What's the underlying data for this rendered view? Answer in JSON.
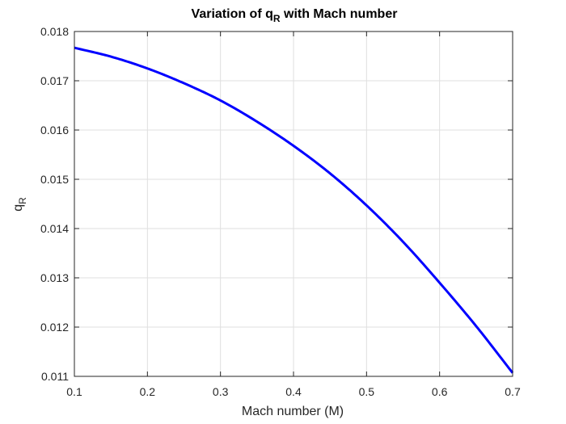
{
  "chart_data": {
    "type": "line",
    "title": {
      "prefix": "Variation of q",
      "subscript": "R",
      "suffix": " with Mach number"
    },
    "xlabel": "Mach number (M)",
    "ylabel": {
      "base": "q",
      "subscript": "R"
    },
    "xlim": [
      0.1,
      0.7
    ],
    "ylim": [
      0.011,
      0.018
    ],
    "xticks": [
      "0.1",
      "0.2",
      "0.3",
      "0.4",
      "0.5",
      "0.6",
      "0.7"
    ],
    "yticks": [
      "0.011",
      "0.012",
      "0.013",
      "0.014",
      "0.015",
      "0.016",
      "0.017",
      "0.018"
    ],
    "grid": true,
    "box": true,
    "series": [
      {
        "color": "#0000ff",
        "x": [
          0.1,
          0.15,
          0.2,
          0.25,
          0.3,
          0.35,
          0.4,
          0.45,
          0.5,
          0.55,
          0.6,
          0.65,
          0.7
        ],
        "y": [
          0.01767,
          0.01749,
          0.01725,
          0.01695,
          0.0166,
          0.01617,
          0.01568,
          0.01512,
          0.01447,
          0.01373,
          0.0129,
          0.01202,
          0.01107
        ]
      }
    ]
  }
}
